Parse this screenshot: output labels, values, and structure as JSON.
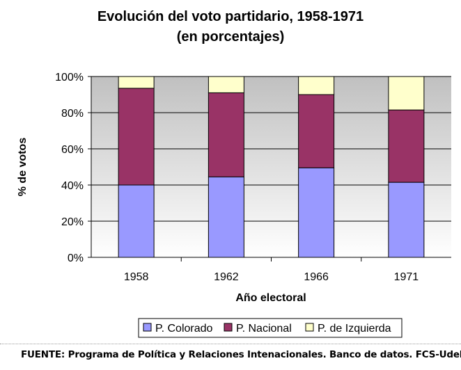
{
  "chart_data": {
    "type": "bar",
    "stacked": true,
    "title": "Evolución del voto partidario, 1958-1971",
    "subtitle": "(en porcentajes)",
    "xlabel": "Año electoral",
    "ylabel": "% de votos",
    "categories": [
      "1958",
      "1962",
      "1966",
      "1971"
    ],
    "ylim": [
      0,
      100
    ],
    "yticks": [
      0,
      20,
      40,
      60,
      80,
      100
    ],
    "ytick_labels": [
      "0%",
      "20%",
      "40%",
      "60%",
      "80%",
      "100%"
    ],
    "grid": true,
    "legend_position": "bottom",
    "series": [
      {
        "name": "P. Colorado",
        "color": "#9999ff",
        "values": [
          40,
          44.5,
          49.5,
          41.5
        ]
      },
      {
        "name": "P. Nacional",
        "color": "#993366",
        "values": [
          53.5,
          46.5,
          40.5,
          40
        ]
      },
      {
        "name": "P. de Izquierda",
        "color": "#ffffcc",
        "values": [
          6.5,
          9,
          10,
          18.5
        ]
      }
    ]
  },
  "source_note": "FUENTE: Programa de Política y Relaciones Intenacionales. Banco de datos. FCS-UdelaR"
}
